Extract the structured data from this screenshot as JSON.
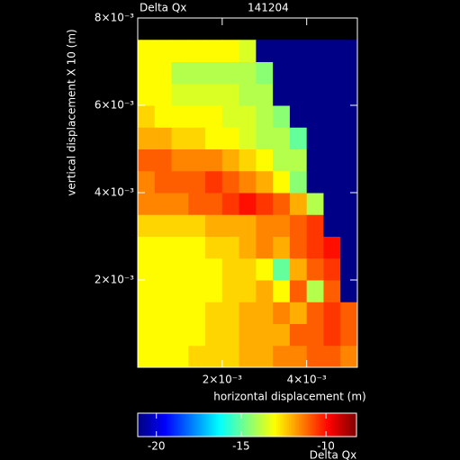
{
  "chart_data": {
    "type": "heatmap",
    "title": "Delta Qx",
    "subtitle": "141204",
    "x_label": "horizontal displacement (m)",
    "y_label": "vertical displacement X 10 (m)",
    "colorbar_label": "Delta Qx",
    "colormap": "jet",
    "xlim": [
      0,
      0.0052
    ],
    "ylim": [
      0,
      0.008
    ],
    "xticks": [
      {
        "value": 0.002,
        "label": "2×10⁻³"
      },
      {
        "value": 0.004,
        "label": "4×10⁻³"
      }
    ],
    "yticks": [
      {
        "value": 0.002,
        "label": "2×10⁻³"
      },
      {
        "value": 0.004,
        "label": "4×10⁻³"
      },
      {
        "value": 0.006,
        "label": "6×10⁻³"
      },
      {
        "value": 0.008,
        "label": "8×10⁻³"
      }
    ],
    "clim": [
      -21.1,
      -8.2
    ],
    "cticks": [
      -20,
      -15,
      -10
    ],
    "x_edges": [
      0,
      0.0004,
      0.0008,
      0.0012,
      0.0016,
      0.002,
      0.0024,
      0.0028,
      0.0032,
      0.0036,
      0.004,
      0.0044,
      0.0048,
      0.0052
    ],
    "y_edges": [
      0,
      0.0005,
      0.001,
      0.0015,
      0.002,
      0.0025,
      0.003,
      0.0035,
      0.004,
      0.0045,
      0.005,
      0.0055,
      0.006,
      0.0065,
      0.007,
      0.0075
    ],
    "z": [
      [
        -13,
        -13,
        -13,
        -12.5,
        -12.5,
        -12.5,
        -12,
        -12,
        -11.5,
        -11.5,
        -11,
        -11,
        -11.5
      ],
      [
        -13,
        -13,
        -13,
        -13,
        -12.5,
        -12.5,
        -12,
        -12,
        -12,
        -11,
        -11,
        -10.5,
        -11
      ],
      [
        -13,
        -13,
        -13,
        -13,
        -12.5,
        -12.5,
        -12,
        -12,
        -11.5,
        -12,
        -11,
        -10.5,
        -11
      ],
      [
        -13,
        -13,
        -13,
        -13,
        -13,
        -12.5,
        -12.5,
        -12,
        -13,
        -11,
        -14,
        -11,
        -21
      ],
      [
        -13,
        -13,
        -13,
        -13,
        -13,
        -12.5,
        -12.5,
        -13,
        -15,
        -12,
        -11,
        -10.5,
        -21
      ],
      [
        -13,
        -13,
        -13,
        -13,
        -12.5,
        -12.5,
        -12,
        -11.5,
        -12,
        -11,
        -10.5,
        -10,
        -21
      ],
      [
        -12.5,
        -12.5,
        -12.5,
        -12.5,
        -12,
        -12,
        -12,
        -11.5,
        -11.5,
        -11,
        -10.5,
        -21,
        -21
      ],
      [
        -11.5,
        -11.5,
        -11.5,
        -11,
        -11,
        -10.5,
        -10,
        -10.5,
        -11,
        -12,
        -14,
        -21,
        -21
      ],
      [
        -11.5,
        -11,
        -11,
        -11,
        -10.5,
        -11,
        -11.5,
        -12,
        -13,
        -14.5,
        -21,
        -21,
        -21
      ],
      [
        -11,
        -11,
        -11.5,
        -11.5,
        -11.5,
        -12,
        -12.5,
        -13,
        -14,
        -14,
        -21,
        -21,
        -21
      ],
      [
        -12,
        -12,
        -12.5,
        -12.5,
        -13,
        -13,
        -13.5,
        -14,
        -14,
        -15,
        -21,
        -21,
        -21
      ],
      [
        -12.5,
        -13,
        -13,
        -13,
        -13,
        -13.5,
        -13.5,
        -14,
        -14.5,
        -21,
        -21,
        -21,
        -21
      ],
      [
        -13,
        -13,
        -13.5,
        -13.5,
        -13.5,
        -13.5,
        -14,
        -14,
        -21,
        -21,
        -21,
        -21,
        -21
      ],
      [
        -13,
        -13,
        -14,
        -14,
        -14,
        -14,
        -14,
        -14.5,
        -21,
        -21,
        -21,
        -21,
        -21
      ],
      [
        -13,
        -13,
        -13,
        -13,
        -13,
        -13,
        -13.5,
        -21,
        -21,
        -21,
        -21,
        -21,
        -21
      ]
    ]
  }
}
